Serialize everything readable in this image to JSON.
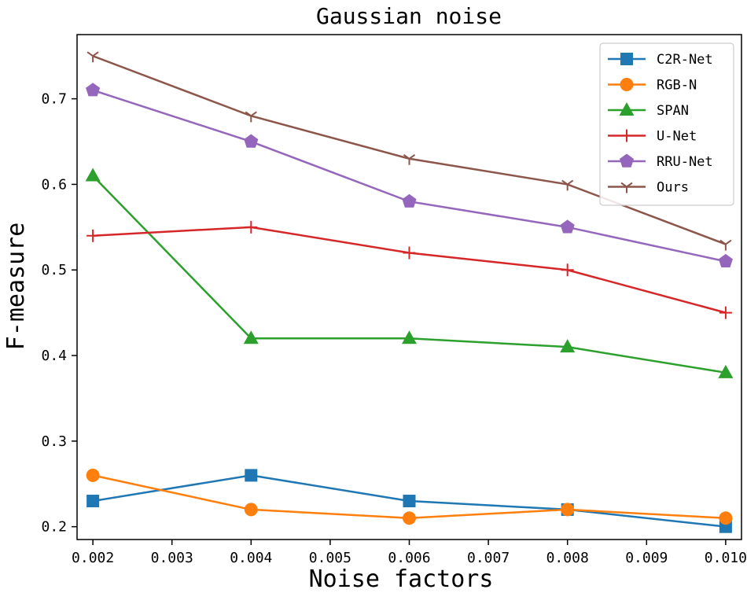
{
  "chart_data": {
    "type": "line",
    "title": "Gaussian noise",
    "xlabel": "Noise factors",
    "ylabel": "F-measure",
    "xlim": [
      0.0018,
      0.0102
    ],
    "ylim": [
      0.185,
      0.775
    ],
    "xticks": [
      0.002,
      0.003,
      0.004,
      0.005,
      0.006,
      0.007,
      0.008,
      0.009,
      0.01
    ],
    "xtick_labels": [
      "0.002",
      "0.003",
      "0.004",
      "0.005",
      "0.006",
      "0.007",
      "0.008",
      "0.009",
      "0.010"
    ],
    "yticks": [
      0.2,
      0.3,
      0.4,
      0.5,
      0.6,
      0.7
    ],
    "ytick_labels": [
      "0.2",
      "0.3",
      "0.4",
      "0.5",
      "0.6",
      "0.7"
    ],
    "grid": false,
    "legend_position": "top-right",
    "x": [
      0.002,
      0.004,
      0.006,
      0.008,
      0.01
    ],
    "series": [
      {
        "name": "C2R-Net",
        "color": "#1f77b4",
        "marker": "square",
        "values": [
          0.23,
          0.26,
          0.23,
          0.22,
          0.2
        ]
      },
      {
        "name": "RGB-N",
        "color": "#ff7f0e",
        "marker": "circle",
        "values": [
          0.26,
          0.22,
          0.21,
          0.22,
          0.21
        ]
      },
      {
        "name": "SPAN",
        "color": "#2ca02c",
        "marker": "triangle",
        "values": [
          0.61,
          0.42,
          0.42,
          0.41,
          0.38
        ]
      },
      {
        "name": "U-Net",
        "color": "#d62728",
        "marker": "plus",
        "values": [
          0.54,
          0.55,
          0.52,
          0.5,
          0.45
        ]
      },
      {
        "name": "RRU-Net",
        "color": "#9467bd",
        "marker": "pentagon",
        "values": [
          0.71,
          0.65,
          0.58,
          0.55,
          0.51
        ]
      },
      {
        "name": "Ours",
        "color": "#8c564b",
        "marker": "tri_down",
        "values": [
          0.75,
          0.68,
          0.63,
          0.6,
          0.53
        ]
      }
    ]
  }
}
